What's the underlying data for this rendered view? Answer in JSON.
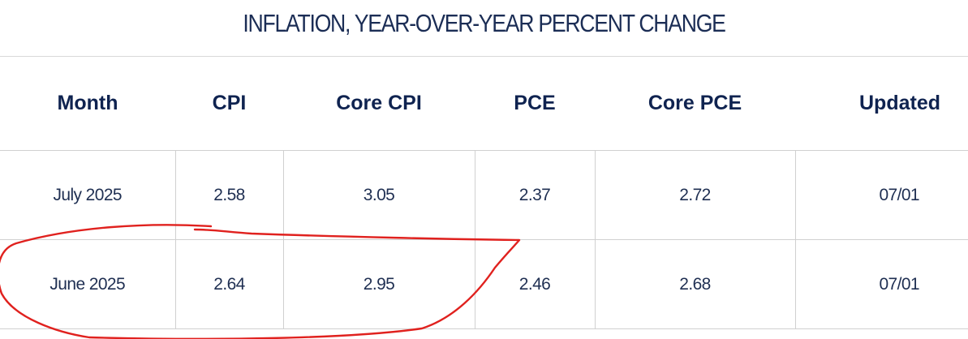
{
  "title": "INFLATION, YEAR-OVER-YEAR PERCENT CHANGE",
  "table": {
    "headers": [
      "Month",
      "CPI",
      "Core CPI",
      "PCE",
      "Core PCE",
      "Updated"
    ],
    "rows": [
      [
        "July 2025",
        "2.58",
        "3.05",
        "2.37",
        "2.72",
        "07/01"
      ],
      [
        "June 2025",
        "2.64",
        "2.95",
        "2.46",
        "2.68",
        "07/01"
      ]
    ]
  },
  "annotation": {
    "color": "#e0211e",
    "shape": "hand-drawn circle around June 2025 row"
  }
}
